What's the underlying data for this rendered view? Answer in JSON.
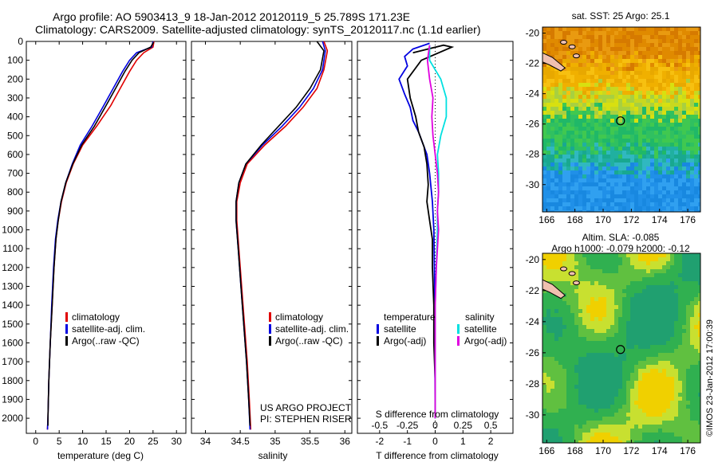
{
  "header": {
    "line1": "Argo profile: AO 5903413_9 18-Jan-2012 20120119_5 25.789S 171.23E",
    "line2": "Climatology: CARS2009. Satellite-adjusted climatology: synTS_20120117.nc (1.1d earlier)"
  },
  "panels": {
    "temperature": {
      "xlabel": "temperature (deg C)"
    },
    "salinity": {
      "xlabel": "salinity",
      "credit1": "US ARGO PROJECT",
      "credit2": "PI: STEPHEN RISER"
    },
    "difference": {
      "label_top": "S difference from climatology",
      "label_bottom": "T difference from climatology",
      "s_ticks": [
        "-0.5",
        "-0.25",
        "0",
        "0.25",
        "0.5"
      ],
      "t_ticks": [
        "-2",
        "-1",
        "0",
        "1",
        "2"
      ]
    }
  },
  "legend_tsc": {
    "items": [
      {
        "label": "climatology",
        "color": "#e00000"
      },
      {
        "label": "satellite-adj. clim.",
        "color": "#0000e0"
      },
      {
        "label": "Argo(..raw -QC)",
        "color": "#000000"
      }
    ]
  },
  "legend_diff": {
    "temperature_head": "temperature",
    "salinity_head": "salinity",
    "temp_items": [
      {
        "label": "satellite",
        "color": "#0000e0"
      },
      {
        "label": "Argo(-adj)",
        "color": "#000000"
      }
    ],
    "sal_items": [
      {
        "label": "satellite",
        "color": "#00e0e0"
      },
      {
        "label": "Argo(-adj)",
        "color": "#e000e0"
      }
    ]
  },
  "maps": {
    "sst_title": "sat. SST: 25 Argo: 25.1",
    "sla_title1": "Altim. SLA: -0.085",
    "sla_title2": "Argo h1000: -0.079 h2000: -0.12",
    "lat_ticks": [
      "-20",
      "-22",
      "-24",
      "-26",
      "-28",
      "-30"
    ],
    "lon_ticks": [
      "166",
      "168",
      "170",
      "172",
      "174",
      "176"
    ],
    "argo_lon": 171.23,
    "argo_lat": -25.789
  },
  "watermark": "©IMOS 23-Jan-2012 17:00:39",
  "chart_data": [
    {
      "type": "line",
      "name": "temperature profile",
      "xlabel": "temperature (deg C)",
      "ylabel": "",
      "xlim": [
        -2,
        32
      ],
      "ylim": [
        2080,
        0
      ],
      "x_ticks": [
        0,
        5,
        10,
        15,
        20,
        25,
        30
      ],
      "y_ticks": [
        0,
        100,
        200,
        300,
        400,
        500,
        600,
        700,
        800,
        900,
        1000,
        1100,
        1200,
        1300,
        1400,
        1500,
        1600,
        1700,
        1800,
        1900,
        2000
      ],
      "series": [
        {
          "name": "climatology",
          "color": "#e00000",
          "points": [
            [
              25.2,
              0
            ],
            [
              25,
              30
            ],
            [
              23,
              60
            ],
            [
              21.5,
              100
            ],
            [
              20,
              160
            ],
            [
              18,
              250
            ],
            [
              16,
              340
            ],
            [
              13,
              450
            ],
            [
              10,
              550
            ],
            [
              8,
              650
            ],
            [
              6.5,
              750
            ],
            [
              5.5,
              850
            ],
            [
              4.8,
              950
            ],
            [
              4.3,
              1050
            ],
            [
              3.9,
              1200
            ],
            [
              3.5,
              1400
            ],
            [
              3.1,
              1600
            ],
            [
              2.8,
              1800
            ],
            [
              2.6,
              2000
            ],
            [
              2.5,
              2060
            ]
          ]
        },
        {
          "name": "satellite-adj. clim.",
          "color": "#0000e0",
          "points": [
            [
              25,
              0
            ],
            [
              24.7,
              30
            ],
            [
              21.5,
              60
            ],
            [
              20,
              100
            ],
            [
              18.5,
              160
            ],
            [
              16.5,
              250
            ],
            [
              14.5,
              340
            ],
            [
              12,
              450
            ],
            [
              9.5,
              550
            ],
            [
              7.8,
              650
            ],
            [
              6.4,
              750
            ],
            [
              5.4,
              850
            ],
            [
              4.7,
              950
            ],
            [
              4.2,
              1050
            ],
            [
              3.8,
              1200
            ],
            [
              3.4,
              1400
            ],
            [
              3.1,
              1600
            ],
            [
              2.8,
              1800
            ],
            [
              2.6,
              2000
            ],
            [
              2.5,
              2060
            ]
          ]
        },
        {
          "name": "Argo(..raw -QC)",
          "color": "#000000",
          "points": [
            [
              25.1,
              5
            ],
            [
              24.5,
              30
            ],
            [
              22,
              60
            ],
            [
              20.5,
              100
            ],
            [
              19,
              160
            ],
            [
              17,
              250
            ],
            [
              15,
              340
            ],
            [
              12.5,
              450
            ],
            [
              9.8,
              550
            ],
            [
              7.9,
              650
            ],
            [
              6.4,
              750
            ],
            [
              5.4,
              850
            ],
            [
              4.8,
              950
            ],
            [
              4.3,
              1050
            ],
            [
              3.9,
              1200
            ],
            [
              3.5,
              1400
            ],
            [
              3.1,
              1600
            ],
            [
              2.8,
              1800
            ],
            [
              2.6,
              2000
            ],
            [
              2.6,
              2040
            ]
          ]
        }
      ]
    },
    {
      "type": "line",
      "name": "salinity profile",
      "xlabel": "salinity",
      "ylabel": "",
      "xlim": [
        33.8,
        36.1
      ],
      "ylim": [
        2080,
        0
      ],
      "x_ticks": [
        34,
        34.5,
        35,
        35.5,
        36
      ],
      "series": [
        {
          "name": "climatology",
          "color": "#e00000",
          "points": [
            [
              35.7,
              0
            ],
            [
              35.75,
              50
            ],
            [
              35.7,
              150
            ],
            [
              35.6,
              250
            ],
            [
              35.4,
              350
            ],
            [
              35.15,
              450
            ],
            [
              34.85,
              550
            ],
            [
              34.6,
              650
            ],
            [
              34.5,
              750
            ],
            [
              34.45,
              850
            ],
            [
              34.45,
              950
            ],
            [
              34.48,
              1100
            ],
            [
              34.52,
              1300
            ],
            [
              34.56,
              1500
            ],
            [
              34.6,
              1700
            ],
            [
              34.63,
              1900
            ],
            [
              34.65,
              2060
            ]
          ]
        },
        {
          "name": "satellite-adj. clim.",
          "color": "#0000e0",
          "points": [
            [
              35.68,
              0
            ],
            [
              35.72,
              50
            ],
            [
              35.68,
              150
            ],
            [
              35.55,
              250
            ],
            [
              35.35,
              350
            ],
            [
              35.1,
              450
            ],
            [
              34.82,
              550
            ],
            [
              34.58,
              650
            ],
            [
              34.48,
              750
            ],
            [
              34.44,
              850
            ],
            [
              34.44,
              950
            ],
            [
              34.47,
              1100
            ],
            [
              34.51,
              1300
            ],
            [
              34.55,
              1500
            ],
            [
              34.59,
              1700
            ],
            [
              34.62,
              1900
            ],
            [
              34.64,
              2060
            ]
          ]
        },
        {
          "name": "Argo(..raw -QC)",
          "color": "#000000",
          "points": [
            [
              35.6,
              0
            ],
            [
              35.7,
              50
            ],
            [
              35.65,
              150
            ],
            [
              35.5,
              250
            ],
            [
              35.3,
              350
            ],
            [
              35.05,
              450
            ],
            [
              34.8,
              550
            ],
            [
              34.58,
              650
            ],
            [
              34.48,
              750
            ],
            [
              34.44,
              850
            ],
            [
              34.44,
              950
            ],
            [
              34.47,
              1100
            ],
            [
              34.51,
              1300
            ],
            [
              34.55,
              1500
            ],
            [
              34.59,
              1700
            ],
            [
              34.62,
              1900
            ],
            [
              34.64,
              2040
            ]
          ]
        }
      ]
    },
    {
      "type": "line",
      "name": "difference profiles",
      "xlabel": "T difference from climatology",
      "xlim": [
        -2.8,
        2.8
      ],
      "ylim": [
        2080,
        0
      ],
      "series": [
        {
          "name": "temperature satellite",
          "color": "#0000e0",
          "points": [
            [
              -0.2,
              10
            ],
            [
              -0.8,
              40
            ],
            [
              -1.1,
              80
            ],
            [
              -1.0,
              130
            ],
            [
              -1.3,
              200
            ],
            [
              -1.1,
              280
            ],
            [
              -0.9,
              350
            ],
            [
              -0.8,
              420
            ],
            [
              -0.6,
              480
            ],
            [
              -0.5,
              520
            ],
            [
              -0.3,
              600
            ],
            [
              -0.2,
              700
            ],
            [
              -0.1,
              850
            ],
            [
              -0.05,
              1000
            ],
            [
              -0.02,
              1300
            ],
            [
              -0.01,
              1700
            ],
            [
              0,
              2000
            ]
          ]
        },
        {
          "name": "temperature Argo(-adj)",
          "color": "#000000",
          "points": [
            [
              -0.8,
              60
            ],
            [
              0.3,
              20
            ],
            [
              0.6,
              30
            ],
            [
              -0.5,
              100
            ],
            [
              -1.0,
              200
            ],
            [
              -0.9,
              300
            ],
            [
              -0.7,
              400
            ],
            [
              -0.6,
              480
            ],
            [
              -0.4,
              560
            ],
            [
              -0.3,
              650
            ],
            [
              -0.25,
              760
            ],
            [
              -0.3,
              850
            ],
            [
              -0.2,
              950
            ],
            [
              -0.1,
              1050
            ],
            [
              -0.1,
              1200
            ],
            [
              -0.05,
              1400
            ],
            [
              -0.05,
              1600
            ],
            [
              0,
              1800
            ],
            [
              0,
              2000
            ]
          ]
        },
        {
          "name": "salinity satellite",
          "color": "#00e0e0",
          "points": [
            [
              -0.05,
              20
            ],
            [
              -0.05,
              100
            ],
            [
              0.05,
              200
            ],
            [
              0.1,
              300
            ],
            [
              0.1,
              400
            ],
            [
              0.05,
              500
            ],
            [
              0.02,
              600
            ],
            [
              0.03,
              700
            ],
            [
              0.03,
              800
            ],
            [
              0.02,
              900
            ],
            [
              0.02,
              1000
            ],
            [
              0.01,
              1200
            ],
            [
              0,
              1400
            ],
            [
              0,
              1600
            ],
            [
              0,
              1800
            ],
            [
              0,
              2000
            ]
          ]
        },
        {
          "name": "salinity Argo(-adj)",
          "color": "#e000e0",
          "points": [
            [
              -0.05,
              20
            ],
            [
              -0.07,
              100
            ],
            [
              -0.05,
              200
            ],
            [
              -0.02,
              300
            ],
            [
              -0.03,
              400
            ],
            [
              -0.02,
              500
            ],
            [
              0,
              600
            ],
            [
              0.02,
              700
            ],
            [
              0.03,
              800
            ],
            [
              0.02,
              900
            ],
            [
              0.03,
              1000
            ],
            [
              0.01,
              1200
            ],
            [
              0,
              1400
            ],
            [
              0,
              1600
            ],
            [
              0,
              1800
            ],
            [
              0,
              2000
            ]
          ]
        }
      ]
    },
    {
      "type": "heatmap",
      "name": "sat. SST map",
      "title": "sat. SST: 25 Argo: 25.1",
      "xlim": [
        165.7,
        176.9
      ],
      "ylim": [
        -31.8,
        -19.6
      ],
      "x_ticks": [
        166,
        168,
        170,
        172,
        174,
        176
      ],
      "y_ticks": [
        -20,
        -22,
        -24,
        -26,
        -28,
        -30
      ]
    },
    {
      "type": "heatmap",
      "name": "Altim. SLA map",
      "title": "Altim. SLA: -0.085",
      "subtitle": "Argo h1000: -0.079 h2000: -0.12",
      "xlim": [
        165.7,
        176.9
      ],
      "ylim": [
        -31.8,
        -19.6
      ],
      "x_ticks": [
        166,
        168,
        170,
        172,
        174,
        176
      ],
      "y_ticks": [
        -20,
        -22,
        -24,
        -26,
        -28,
        -30
      ]
    }
  ]
}
